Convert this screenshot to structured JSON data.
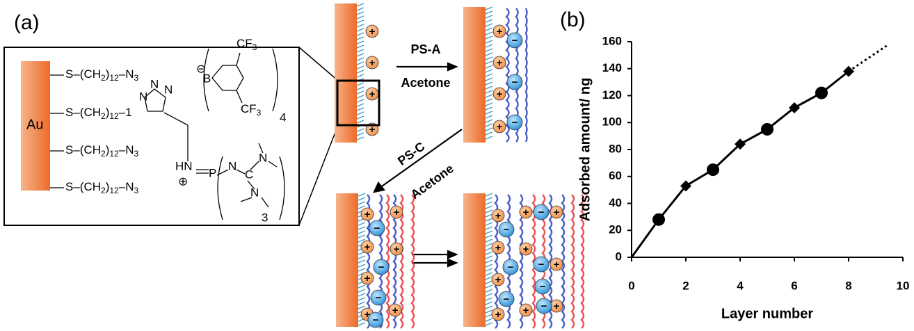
{
  "diagram": {
    "panel_label": "(a)",
    "au": "Au",
    "chains": [
      [
        "S–(CH",
        "2",
        ")",
        "12",
        "–N",
        "3"
      ],
      [
        "S–(CH",
        "2",
        ")",
        "12",
        "–1"
      ],
      [
        "S–(CH",
        "2",
        ")",
        "12",
        "–N",
        "3"
      ],
      [
        "S–(CH",
        "2",
        ")",
        "12",
        "–N",
        "3"
      ]
    ],
    "triazole_n": "N",
    "borate": {
      "anion": "⊖",
      "boron": "B",
      "cf3": [
        "CF",
        "3"
      ],
      "count": "4"
    },
    "phosphazene": {
      "hn": "HN",
      "p": "P",
      "cation": "⊕",
      "n": "N",
      "c": "C",
      "count": "3"
    },
    "charge_plus": "+",
    "charge_minus": "−",
    "step1": {
      "reagent": "PS-A",
      "solvent": "Acetone"
    },
    "step2": {
      "reagent": "PS-C",
      "solvent": "Acetone"
    }
  },
  "chart_data": {
    "type": "line",
    "panel_label": "(b)",
    "x_label": "Layer number",
    "y_label": "Adsorbed amount/ ng",
    "color": "#000000",
    "series": [
      {
        "x": [
          0,
          1,
          2,
          3,
          4,
          5,
          6,
          7,
          8
        ],
        "values": [
          0,
          28,
          53,
          65,
          84,
          95,
          111,
          122,
          138
        ],
        "markers": [
          null,
          "circle",
          "diamond",
          "circle",
          "diamond",
          "circle",
          "diamond",
          "circle",
          "diamond"
        ]
      }
    ],
    "extrapolation": {
      "x": [
        8,
        9.4
      ],
      "values": [
        138,
        157
      ],
      "style": "dotted"
    },
    "xlim": [
      0,
      10
    ],
    "xticks": [
      0,
      2,
      4,
      6,
      8,
      10
    ],
    "ylim": [
      0,
      160
    ],
    "yticks": [
      0,
      20,
      40,
      60,
      80,
      100,
      120,
      140,
      160
    ],
    "grid": false
  }
}
